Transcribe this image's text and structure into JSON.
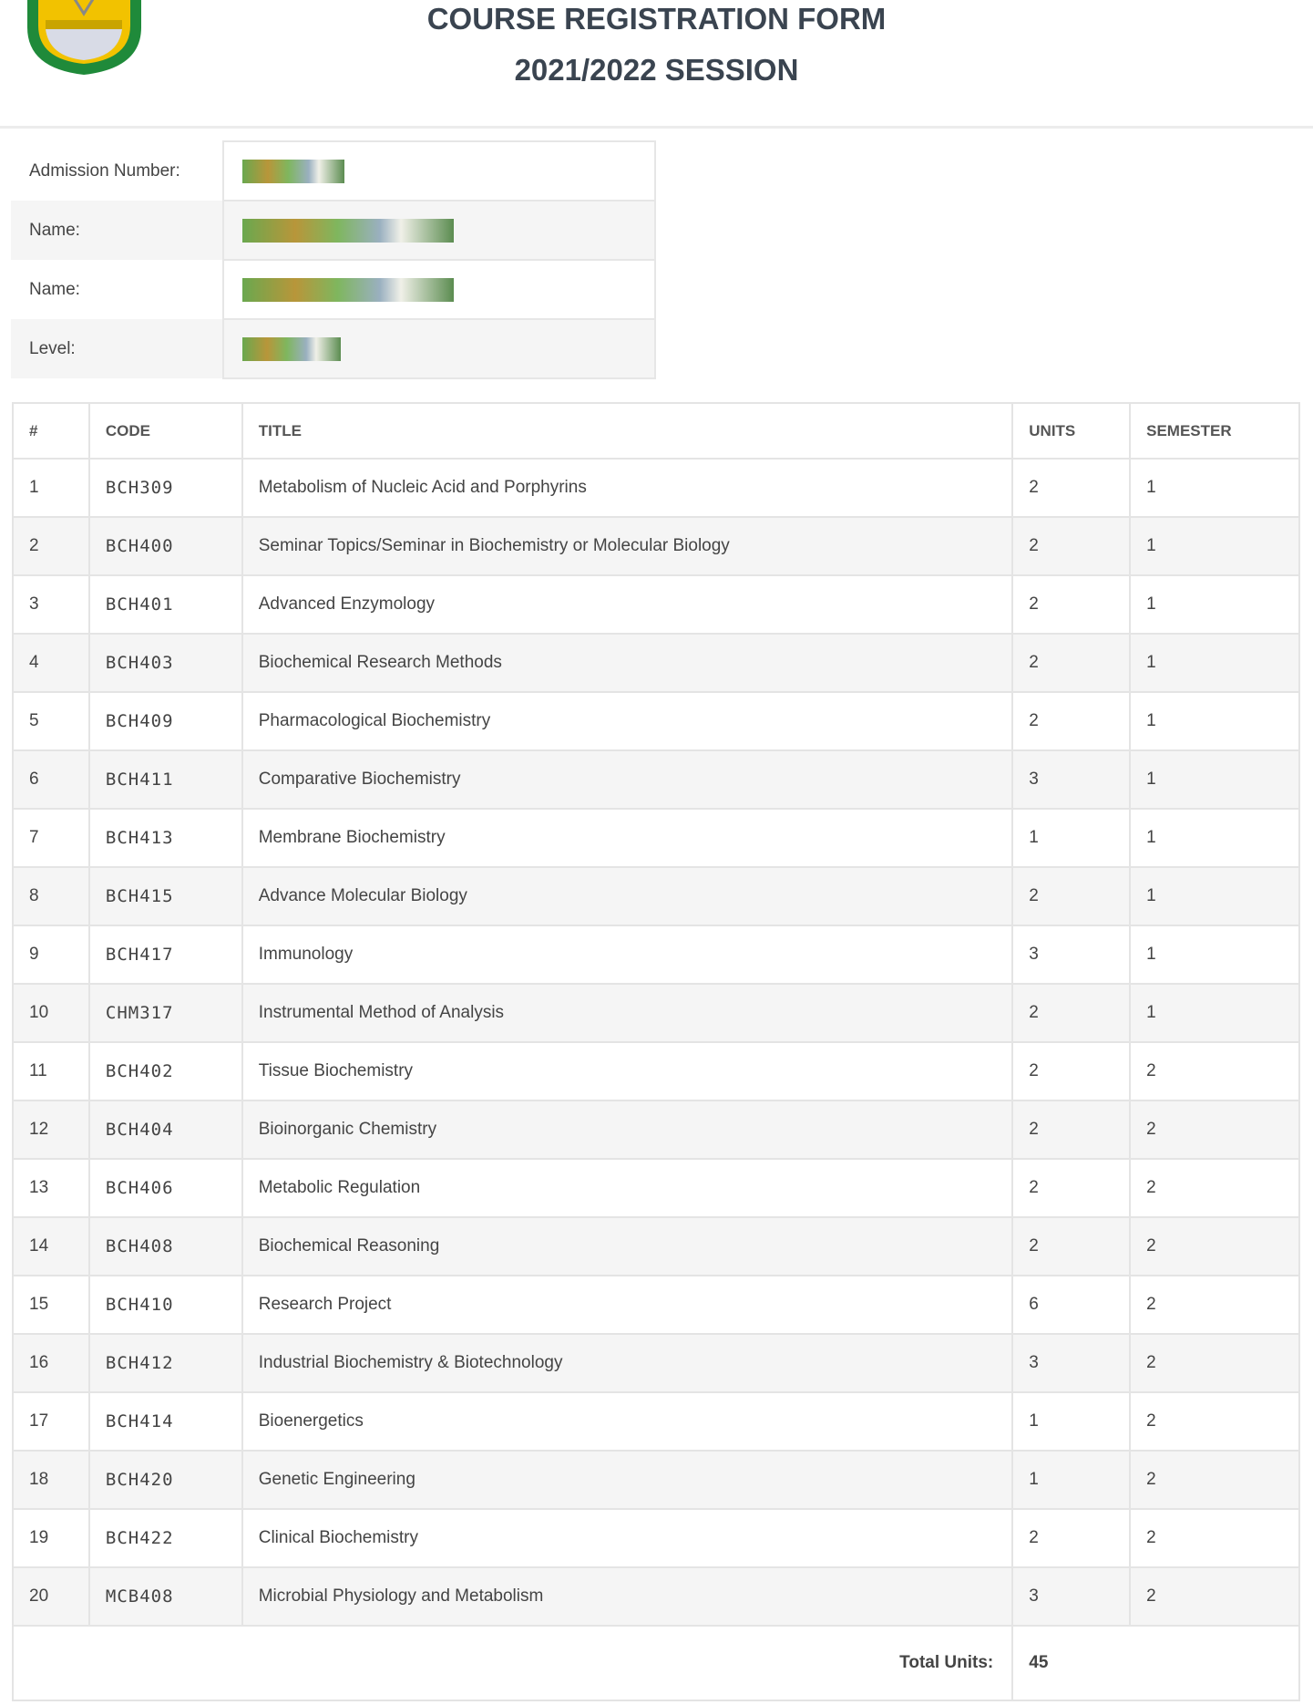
{
  "header": {
    "title": "COURSE REGISTRATION FORM",
    "session": "2021/2022 SESSION"
  },
  "colors": {
    "logo_green": "#1f8a3a",
    "logo_yellow": "#f2c200"
  },
  "student_info": [
    {
      "label": "Admission Number:"
    },
    {
      "label": "Name:"
    },
    {
      "label": "Name:"
    },
    {
      "label": "Level:"
    }
  ],
  "table": {
    "headers": [
      "#",
      "CODE",
      "TITLE",
      "UNITS",
      "SEMESTER"
    ],
    "rows": [
      [
        "1",
        "BCH309",
        "Metabolism of Nucleic Acid and Porphyrins",
        "2",
        "1"
      ],
      [
        "2",
        "BCH400",
        "Seminar Topics/Seminar in Biochemistry or Molecular Biology",
        "2",
        "1"
      ],
      [
        "3",
        "BCH401",
        "Advanced Enzymology",
        "2",
        "1"
      ],
      [
        "4",
        "BCH403",
        "Biochemical Research Methods",
        "2",
        "1"
      ],
      [
        "5",
        "BCH409",
        "Pharmacological Biochemistry",
        "2",
        "1"
      ],
      [
        "6",
        "BCH411",
        "Comparative Biochemistry",
        "3",
        "1"
      ],
      [
        "7",
        "BCH413",
        "Membrane Biochemistry",
        "1",
        "1"
      ],
      [
        "8",
        "BCH415",
        "Advance Molecular Biology",
        "2",
        "1"
      ],
      [
        "9",
        "BCH417",
        "Immunology",
        "3",
        "1"
      ],
      [
        "10",
        "CHM317",
        "Instrumental Method of Analysis",
        "2",
        "1"
      ],
      [
        "11",
        "BCH402",
        "Tissue Biochemistry",
        "2",
        "2"
      ],
      [
        "12",
        "BCH404",
        "Bioinorganic Chemistry",
        "2",
        "2"
      ],
      [
        "13",
        "BCH406",
        "Metabolic Regulation",
        "2",
        "2"
      ],
      [
        "14",
        "BCH408",
        "Biochemical Reasoning",
        "2",
        "2"
      ],
      [
        "15",
        "BCH410",
        "Research Project",
        "6",
        "2"
      ],
      [
        "16",
        "BCH412",
        "Industrial Biochemistry & Biotechnology",
        "3",
        "2"
      ],
      [
        "17",
        "BCH414",
        "Bioenergetics",
        "1",
        "2"
      ],
      [
        "18",
        "BCH420",
        "Genetic Engineering",
        "1",
        "2"
      ],
      [
        "19",
        "BCH422",
        "Clinical Biochemistry",
        "2",
        "2"
      ],
      [
        "20",
        "MCB408",
        "Microbial Physiology and Metabolism",
        "3",
        "2"
      ]
    ],
    "total_label": "Total Units:",
    "total_value": "45"
  }
}
